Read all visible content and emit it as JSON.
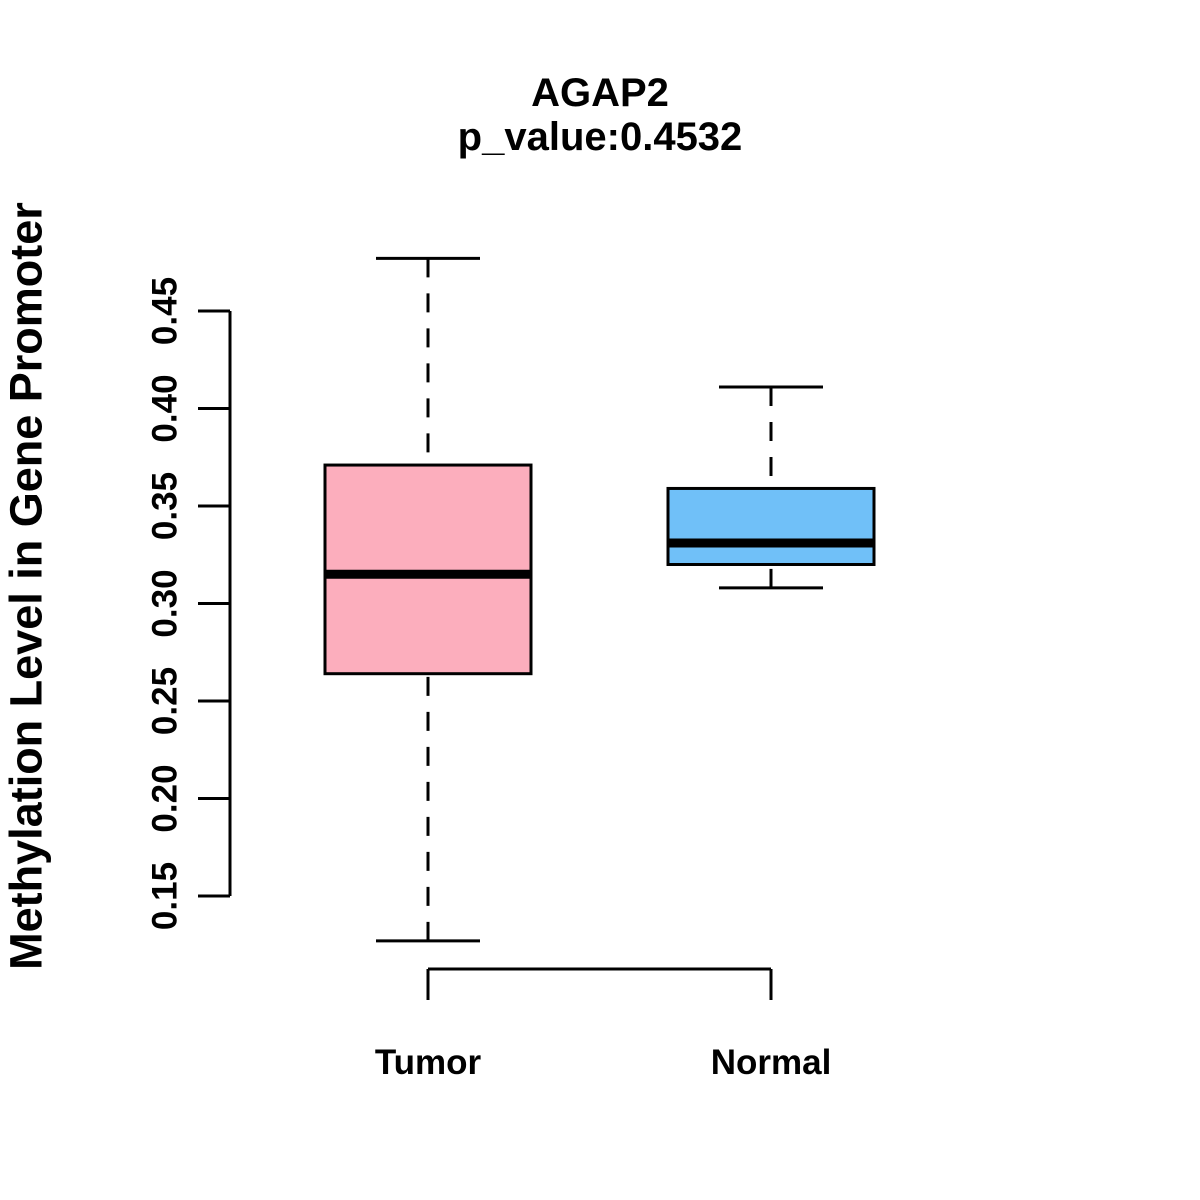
{
  "figure": {
    "title": "AGAP2",
    "subtitle": "p_value:0.4532",
    "ylabel": "Methylation Level in Gene Promoter"
  },
  "chart_data": {
    "type": "boxplot",
    "title": "AGAP2",
    "subtitle": "p_value:0.4532",
    "p_value": 0.4532,
    "ylabel": "Methylation Level in Gene Promoter",
    "xlabel": "",
    "yticks": [
      0.15,
      0.2,
      0.25,
      0.3,
      0.35,
      0.4,
      0.45
    ],
    "ylim": [
      0.126,
      0.478
    ],
    "grid": false,
    "legend": "none",
    "categories": [
      "Tumor",
      "Normal"
    ],
    "groups": [
      {
        "label": "Tumor",
        "color": "#FCAEBD",
        "whisker_low": 0.127,
        "q1": 0.264,
        "median": 0.315,
        "q3": 0.371,
        "whisker_high": 0.477
      },
      {
        "label": "Normal",
        "color": "#70C0F8",
        "whisker_low": 0.308,
        "q1": 0.32,
        "median": 0.331,
        "q3": 0.359,
        "whisker_high": 0.411
      }
    ],
    "border_color": "#000000"
  }
}
